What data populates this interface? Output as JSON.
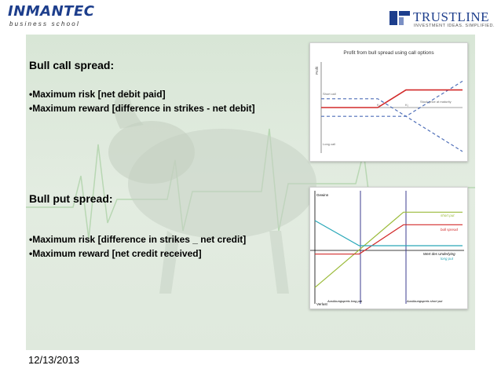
{
  "header": {
    "logo_left_brand": "INMANTEC",
    "logo_left_sub": "business school",
    "logo_right_name": "TRUSTLINE",
    "logo_right_tagline": "INVESTMENT IDEAS. SIMPLIFIED."
  },
  "bull_call": {
    "heading": "Bull call spread:",
    "bullets": [
      "•Maximum risk [net debit paid]",
      "•Maximum reward [difference in strikes - net debit]"
    ]
  },
  "bull_put": {
    "heading": "Bull put spread:",
    "bullets": [
      "•Maximum risk [difference in strikes _ net credit]",
      "•Maximum reward [net credit received]"
    ]
  },
  "chart_data": [
    {
      "type": "line",
      "title": "Profit from bull spread using call options",
      "ylabel": "Profit",
      "annotations": [
        "Short call",
        "Long call",
        "Stock price at maturity",
        "K₁",
        "K₂"
      ],
      "series": [
        {
          "name": "",
          "style": "dashed-blue",
          "x": [
            0,
            6,
            10
          ],
          "y": [
            -1,
            -1,
            3
          ]
        },
        {
          "name": "",
          "style": "dashed-blue",
          "x": [
            0,
            4,
            10
          ],
          "y": [
            1,
            1,
            -5
          ]
        },
        {
          "name": "",
          "style": "solid-red",
          "x": [
            0,
            4,
            6,
            10
          ],
          "y": [
            0,
            0,
            2,
            2
          ]
        }
      ],
      "xlim": [
        0,
        10
      ],
      "ylim": [
        -5,
        5
      ],
      "colors": {
        "dashed": "#4f6fb8",
        "solid": "#d22a2a"
      }
    },
    {
      "type": "line",
      "annotations": [
        "Gewinn",
        "Verlust",
        "Wert des Underlying",
        "Ausübungspreis long put",
        "Ausübungspreis short put"
      ],
      "series": [
        {
          "name": "short put",
          "color": "#9bbb3a",
          "x": [
            0,
            6,
            10
          ],
          "y": [
            -6,
            3,
            3
          ]
        },
        {
          "name": "bull spread",
          "color": "#d22a2a",
          "x": [
            0,
            3,
            6,
            10
          ],
          "y": [
            -2,
            -2,
            1.5,
            1.5
          ]
        },
        {
          "name": "long put",
          "color": "#2aa8b8",
          "x": [
            0,
            3,
            10
          ],
          "y": [
            2,
            -1,
            -1
          ]
        }
      ],
      "xlim": [
        0,
        10
      ],
      "ylim": [
        -7,
        5
      ],
      "colors": {
        "axis": "#000000",
        "vertical": "#3d3d8f"
      }
    }
  ],
  "footer": {
    "date": "12/13/2013"
  }
}
